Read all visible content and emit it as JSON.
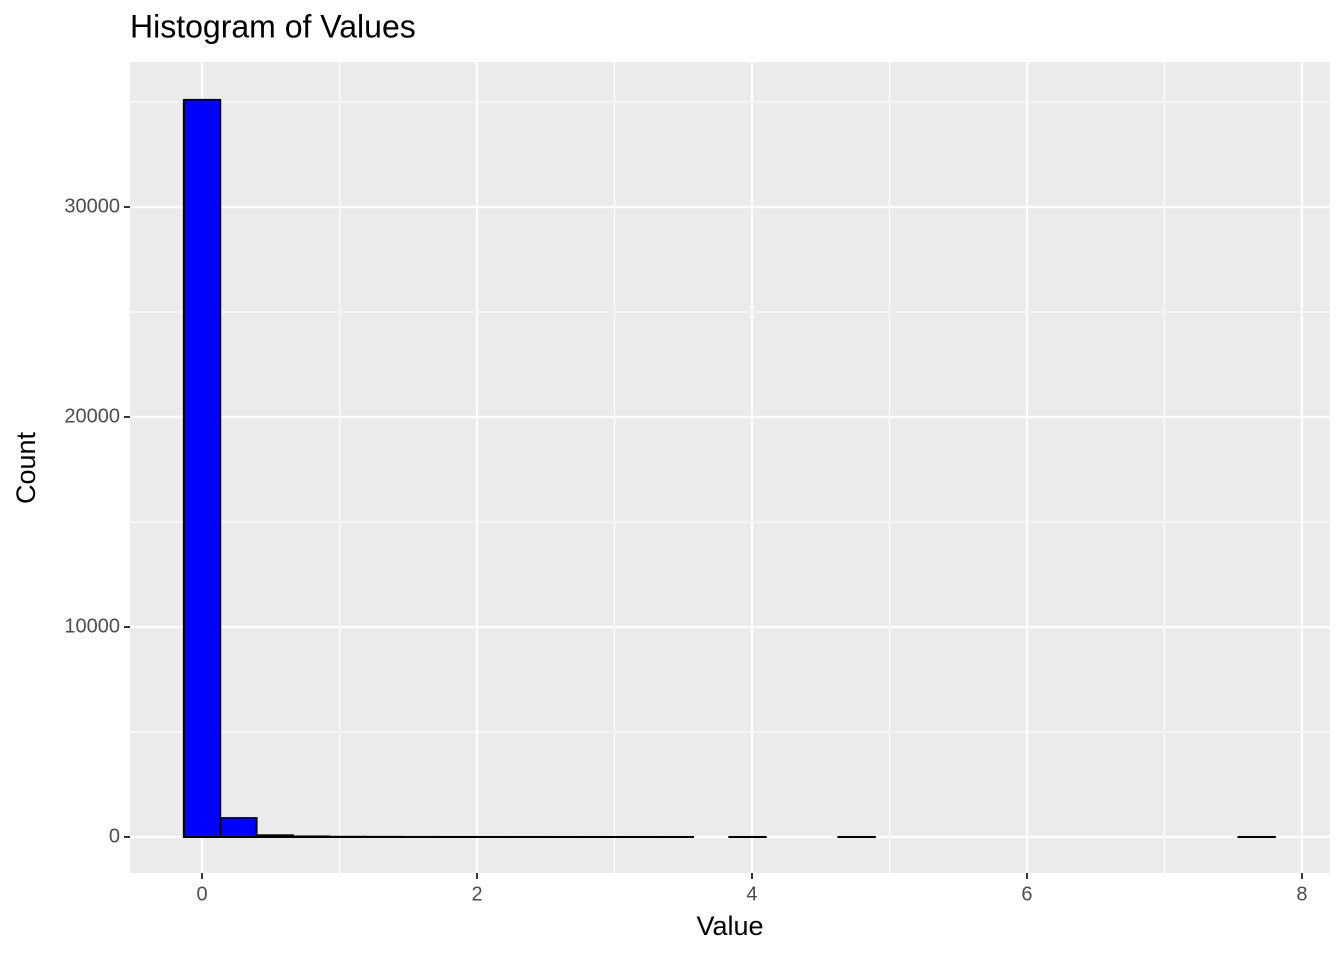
{
  "chart_data": {
    "type": "histogram",
    "title": "Histogram of Values",
    "x_label": "Value",
    "y_label": "Count",
    "bins": [
      -0.1323,
      0.1322,
      0.3967,
      0.6612,
      0.9257,
      1.1902,
      1.4547,
      1.7192,
      1.9837,
      2.2482,
      2.5127,
      2.7772,
      3.0417,
      3.3062,
      3.5707,
      3.8352,
      4.0997,
      4.3642,
      4.6287,
      4.8932,
      5.1577,
      5.4222,
      5.6867,
      5.9512,
      6.2157,
      6.4802,
      6.7447,
      7.0092,
      7.2737,
      7.5382,
      7.8027
    ],
    "values": [
      35100,
      900,
      80,
      25,
      10,
      6,
      4,
      3,
      2,
      2,
      1,
      1,
      1,
      1,
      0,
      1,
      0,
      0,
      1,
      0,
      0,
      0,
      0,
      0,
      0,
      0,
      0,
      0,
      0,
      1
    ],
    "color": "#0000ff",
    "edge_color": "#000000",
    "xlim": [
      -0.524,
      8.204
    ],
    "xticks": [
      0,
      2,
      4,
      6,
      8
    ],
    "x_minor_grid": [
      1,
      3,
      5,
      7
    ],
    "ylim": [
      -1714,
      36905
    ],
    "yticks": [
      0,
      10000,
      20000,
      30000
    ],
    "y_minor_grid": [
      5000,
      15000,
      25000,
      35000
    ],
    "grid": true
  }
}
